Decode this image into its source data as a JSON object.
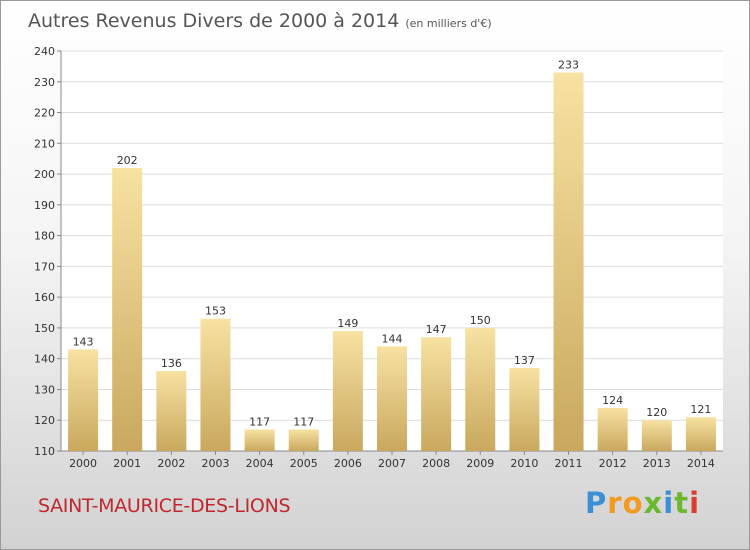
{
  "title": "Autres Revenus Divers de 2000 à 2014",
  "subtitle": "(en milliers d'€)",
  "place": "SAINT-MAURICE-DES-LIONS",
  "brand": {
    "letters": [
      "P",
      "r",
      "o",
      "x",
      "i",
      "t",
      "i"
    ],
    "colors": [
      "#3a8fd6",
      "#f39a1e",
      "#f39a1e",
      "#6bb72e",
      "#3a8fd6",
      "#6bb72e",
      "#e03a2e"
    ]
  },
  "colors": {
    "bar_top": "#f7e2a2",
    "bar_bottom": "#c9a85e",
    "grid": "#dcdcdc",
    "axis_text": "#333333",
    "place_text": "#c1272d"
  },
  "chart_data": {
    "type": "bar",
    "categories": [
      "2000",
      "2001",
      "2002",
      "2003",
      "2004",
      "2005",
      "2006",
      "2007",
      "2008",
      "2009",
      "2010",
      "2011",
      "2012",
      "2013",
      "2014"
    ],
    "values": [
      143,
      202,
      136,
      153,
      117,
      117,
      149,
      144,
      147,
      150,
      137,
      233,
      124,
      120,
      121
    ],
    "ylim": [
      110,
      240
    ],
    "yticks": [
      110,
      120,
      130,
      140,
      150,
      160,
      170,
      180,
      190,
      200,
      210,
      220,
      230,
      240
    ],
    "grid": true,
    "data_labels": true
  }
}
